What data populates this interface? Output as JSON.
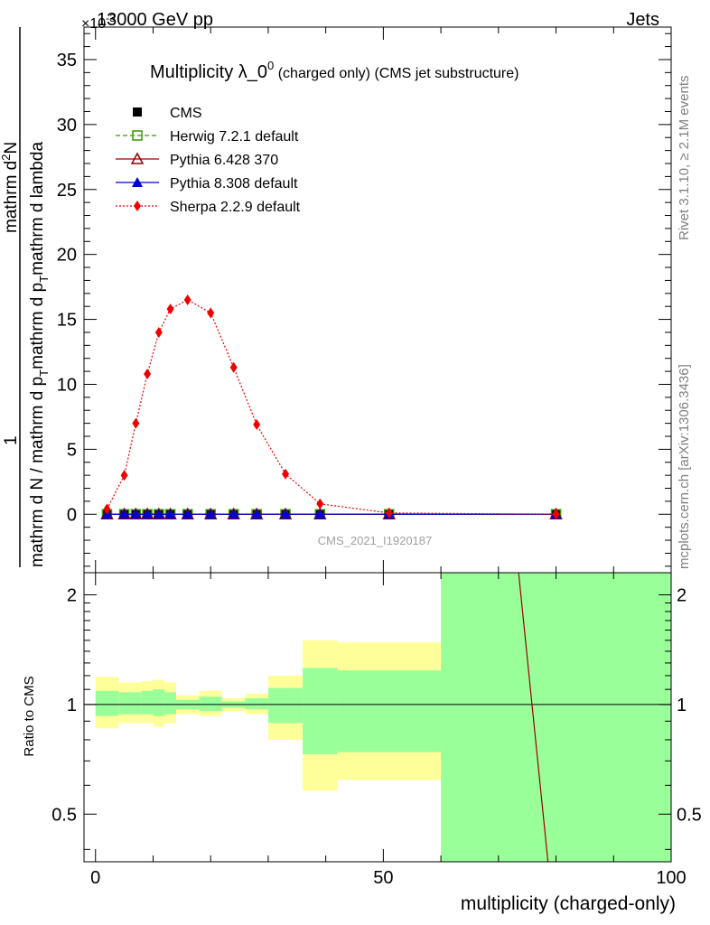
{
  "header": {
    "left": "13000 GeV pp",
    "right": "Jets",
    "exponent": "×10",
    "exponent_power": "-3"
  },
  "side_text": {
    "rivet": "Rivet 3.1.10, ≥ 2.1M events",
    "mcplots": "mcplots.cern.ch [arXiv:1306.3436]"
  },
  "watermark": "CMS_2021_I1920187",
  "colors": {
    "cms": "#000000",
    "herwig": "#339900",
    "pythia6": "#990000",
    "pythia8": "#0000cc",
    "sherpa": "#ee0000",
    "band_inner": "#99ff99",
    "band_outer": "#ffff99"
  },
  "chart_data": [
    {
      "type": "line",
      "title_main": "Multiplicity λ_0",
      "title_sup": "0",
      "title_tail": " (charged only) (CMS jet substructure)",
      "ylabel": "1 / mathrm d N / mathrm d p_T mathrm d p_T mathrm d lambda · mathrm d^2N",
      "ylabel_parts": {
        "line1a": "mathrm d N / mathrm d p",
        "line1b": "T",
        "line1c": "mathrm d p",
        "line1d": "T",
        "line1e": "mathrm d lambda",
        "num_1": "1",
        "num_2a": "mathrm d",
        "num_2b": "2",
        "num_2c": "N"
      },
      "y_multiplier": "1e-3",
      "xlim": [
        -2,
        100
      ],
      "ylim": [
        -4.5,
        37.5
      ],
      "y_ticks": [
        0,
        5,
        10,
        15,
        20,
        25,
        30,
        35
      ],
      "x": [
        2,
        5,
        7,
        9,
        11,
        13,
        16,
        20,
        24,
        28,
        33,
        39,
        51,
        80
      ],
      "series": [
        {
          "name": "CMS",
          "marker": "square-filled",
          "values": [
            0,
            0,
            0,
            0,
            0,
            0,
            0,
            0,
            0,
            0,
            0,
            0,
            0,
            0
          ]
        },
        {
          "name": "Herwig 7.2.1 default",
          "marker": "square-open",
          "style": "dashed",
          "values": [
            0,
            0,
            0,
            0,
            0,
            0,
            0,
            0,
            0,
            0,
            0,
            0,
            0,
            0
          ]
        },
        {
          "name": "Pythia 6.428 370",
          "marker": "triangle-open",
          "style": "solid",
          "values": [
            0,
            0,
            0,
            0,
            0,
            0,
            0,
            0,
            0,
            0,
            0,
            0,
            0,
            0
          ]
        },
        {
          "name": "Pythia 8.308 default",
          "marker": "triangle-filled",
          "style": "solid",
          "values": [
            0,
            0,
            0,
            0,
            0,
            0,
            0,
            0,
            0,
            0,
            0,
            0,
            0,
            0
          ]
        },
        {
          "name": "Sherpa 2.2.9 default",
          "marker": "diamond-filled",
          "style": "dotted",
          "values": [
            0.4,
            3.0,
            7.0,
            10.8,
            14.0,
            15.8,
            16.5,
            15.5,
            11.3,
            6.9,
            3.1,
            0.8,
            0.1,
            0
          ]
        }
      ]
    },
    {
      "type": "line",
      "ylabel": "Ratio to CMS",
      "xlabel": "multiplicity (charged-only)",
      "xlim": [
        -2,
        100
      ],
      "ylim": [
        0.37,
        2.3
      ],
      "y_scale": "log",
      "y_ticks": [
        0.5,
        1,
        2
      ],
      "x_ticks": [
        0,
        50,
        100
      ],
      "bands": [
        {
          "x0": 0,
          "x1": 4,
          "inner": [
            0.93,
            1.09
          ],
          "outer": [
            0.86,
            1.19
          ]
        },
        {
          "x0": 4,
          "x1": 8,
          "inner": [
            0.94,
            1.08
          ],
          "outer": [
            0.89,
            1.15
          ]
        },
        {
          "x0": 8,
          "x1": 10,
          "inner": [
            0.94,
            1.09
          ],
          "outer": [
            0.89,
            1.16
          ]
        },
        {
          "x0": 10,
          "x1": 12,
          "inner": [
            0.93,
            1.1
          ],
          "outer": [
            0.87,
            1.17
          ]
        },
        {
          "x0": 12,
          "x1": 14,
          "inner": [
            0.94,
            1.08
          ],
          "outer": [
            0.89,
            1.15
          ]
        },
        {
          "x0": 14,
          "x1": 18,
          "inner": [
            0.97,
            1.03
          ],
          "outer": [
            0.94,
            1.06
          ]
        },
        {
          "x0": 18,
          "x1": 22,
          "inner": [
            0.96,
            1.05
          ],
          "outer": [
            0.93,
            1.09
          ]
        },
        {
          "x0": 22,
          "x1": 26,
          "inner": [
            0.98,
            1.02
          ],
          "outer": [
            0.96,
            1.04
          ]
        },
        {
          "x0": 26,
          "x1": 30,
          "inner": [
            0.97,
            1.04
          ],
          "outer": [
            0.94,
            1.07
          ]
        },
        {
          "x0": 30,
          "x1": 36,
          "inner": [
            0.89,
            1.11
          ],
          "outer": [
            0.8,
            1.2
          ]
        },
        {
          "x0": 36,
          "x1": 42,
          "inner": [
            0.73,
            1.26
          ],
          "outer": [
            0.58,
            1.5
          ]
        },
        {
          "x0": 42,
          "x1": 60,
          "inner": [
            0.74,
            1.24
          ],
          "outer": [
            0.62,
            1.48
          ]
        },
        {
          "x0": 60,
          "x1": 100,
          "inner": [
            0.37,
            2.3
          ],
          "outer": [
            0.37,
            2.3
          ]
        }
      ],
      "ratio_lines": [
        {
          "name": "Pythia 6.428 370",
          "x": [
            73.5,
            78.6
          ],
          "values": [
            2.3,
            0.37
          ]
        }
      ]
    }
  ]
}
